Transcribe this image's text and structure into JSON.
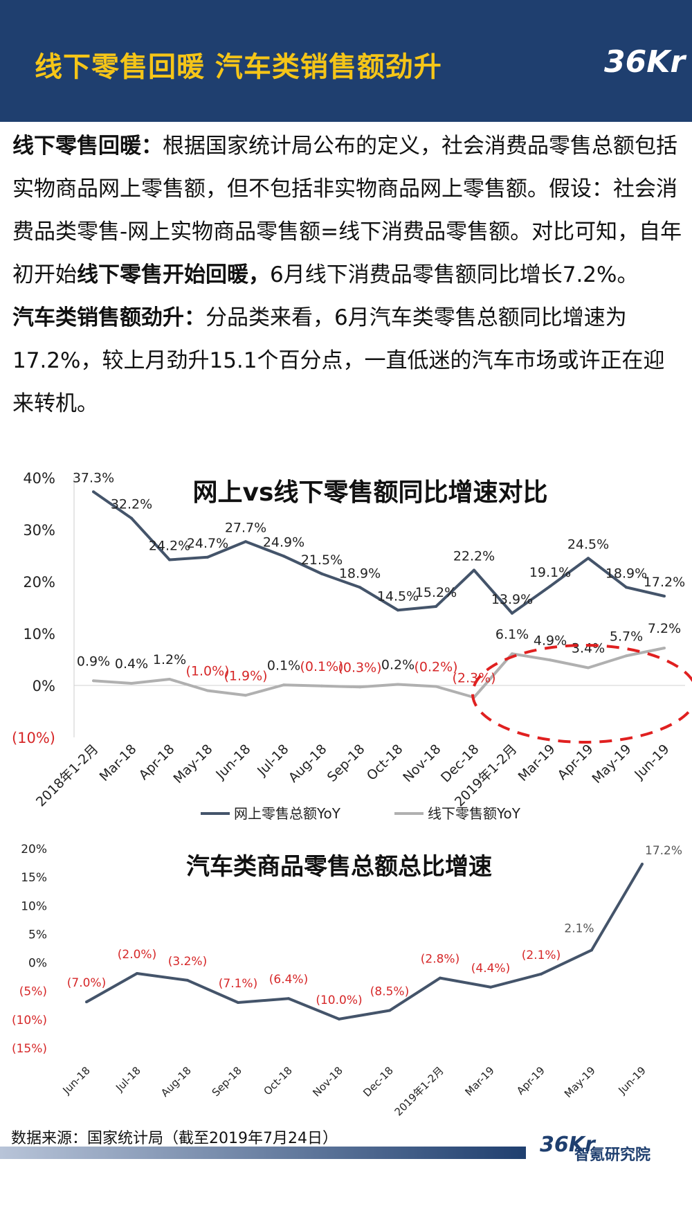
{
  "header": {
    "title": "线下零售回暖 汽车类销售额劲升",
    "logo": "36Kr"
  },
  "body": {
    "p1_bold": "线下零售回暖：",
    "p1_a": "根据国家统计局公布的定义，社会消费品零售总额包括实物商品网上零售额，但不包括非实物商品网上零售额。假设：社会消费品类零售-网上实物商品零售额=线下消费品零售额。对比可知，自年初开始",
    "p1_bold2": "线下零售开始回暖，",
    "p1_b": "6月线下消费品零售额同比增长7.2%。",
    "p2_bold": "汽车类销售额劲升：",
    "p2_a": "分品类来看，6月汽车类零售总额同比增速为17.2%，较上月劲升15.1个百分点，一直低迷的汽车市场或许正在迎来转机。"
  },
  "chart_data": [
    {
      "type": "line",
      "title": "网上vs线下零售额同比增速对比",
      "categories": [
        "2018年1-2月",
        "Mar-18",
        "Apr-18",
        "May-18",
        "Jun-18",
        "Jul-18",
        "Aug-18",
        "Sep-18",
        "Oct-18",
        "Nov-18",
        "Dec-18",
        "2019年1-2月",
        "Mar-19",
        "Apr-19",
        "May-19",
        "Jun-19"
      ],
      "series": [
        {
          "name": "网上零售总额YoY",
          "color": "#44546a",
          "values": [
            37.3,
            32.2,
            24.2,
            24.7,
            27.7,
            24.9,
            21.5,
            18.9,
            14.5,
            15.2,
            22.2,
            13.9,
            19.1,
            24.5,
            18.9,
            17.2
          ],
          "labels": [
            "37.3%",
            "32.2%",
            "24.2%",
            "24.7%",
            "27.7%",
            "24.9%",
            "21.5%",
            "18.9%",
            "14.5%",
            "15.2%",
            "22.2%",
            "13.9%",
            "19.1%",
            "24.5%",
            "18.9%",
            "17.2%"
          ]
        },
        {
          "name": "线下零售额YoY",
          "color": "#b0b0b0",
          "values": [
            0.9,
            0.4,
            1.2,
            -1.0,
            -1.9,
            0.1,
            -0.1,
            -0.3,
            0.2,
            -0.2,
            -2.3,
            6.1,
            4.9,
            3.4,
            5.7,
            7.2
          ],
          "labels": [
            "0.9%",
            "0.4%",
            "1.2%",
            "(1.0%)",
            "(1.9%)",
            "0.1%",
            "(0.1%)",
            "(0.3%)",
            "0.2%",
            "(0.2%)",
            "(2.3%)",
            "6.1%",
            "4.9%",
            "3.4%",
            "5.7%",
            "7.2%"
          ]
        }
      ],
      "y_ticks": [
        "40%",
        "30%",
        "20%",
        "10%",
        "0%",
        "(10%)"
      ],
      "ylim": [
        -10,
        40
      ],
      "negative_color": "#d62728",
      "highlight_color": "#e02020",
      "legend": "bottom"
    },
    {
      "type": "line",
      "title": "汽车类商品零售总额总比增速",
      "categories": [
        "Jun-18",
        "Jul-18",
        "Aug-18",
        "Sep-18",
        "Oct-18",
        "Nov-18",
        "Dec-18",
        "2019年1-2月",
        "Mar-19",
        "Apr-19",
        "May-19",
        "Jun-19"
      ],
      "series": [
        {
          "color": "#44546a",
          "values": [
            -7.0,
            -2.0,
            -3.2,
            -7.1,
            -6.4,
            -10.0,
            -8.5,
            -2.8,
            -4.4,
            -2.1,
            2.1,
            17.2
          ],
          "labels": [
            "(7.0%)",
            "(2.0%)",
            "(3.2%)",
            "(7.1%)",
            "(6.4%)",
            "(10.0%)",
            "(8.5%)",
            "(2.8%)",
            "(4.4%)",
            "(2.1%)",
            "2.1%",
            "17.2%"
          ]
        }
      ],
      "y_ticks": [
        "20%",
        "15%",
        "10%",
        "5%",
        "0%",
        "(5%)",
        "(10%)",
        "(15%)"
      ],
      "ylim": [
        -15,
        20
      ],
      "negative_color": "#d62728"
    }
  ],
  "source": "数据来源：国家统计局（截至2019年7月24日）",
  "footer": {
    "logo": "36Kr",
    "org": "智氪研究院"
  }
}
